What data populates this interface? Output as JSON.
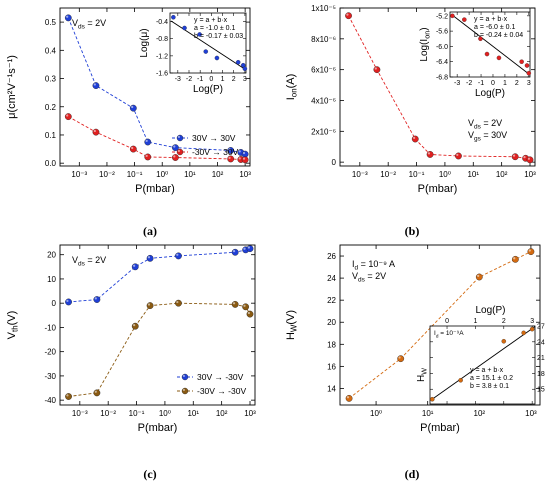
{
  "chart_data": [
    {
      "type": "scatter",
      "panel": "a",
      "caption": "(a)",
      "xlabel": "P(mbar)",
      "ylabel": "μ(cm²V⁻¹s⁻¹)",
      "xscale": "log",
      "xlim": [
        0.0002,
        1500
      ],
      "ylim": [
        -0.01,
        0.55
      ],
      "xticks": [
        0.001,
        0.01,
        0.1,
        1,
        10,
        100,
        1000
      ],
      "xticklabels": [
        "10⁻³",
        "10⁻²",
        "10⁻¹",
        "10⁰",
        "10¹",
        "10²",
        "10³"
      ],
      "yticks": [
        0.0,
        0.1,
        0.2,
        0.3,
        0.4,
        0.5
      ],
      "yticklabels": [
        "0.0",
        "0.1",
        "0.2",
        "0.3",
        "0.4",
        "0.5"
      ],
      "grid": false,
      "legend": "bottom-right",
      "annotation": "V_ds = 2V",
      "series": [
        {
          "name": "30V → 30V",
          "color": "#1f3fd6",
          "x": [
            0.0004,
            0.004,
            0.09,
            0.3,
            3,
            300,
            700,
            1000
          ],
          "y": [
            0.515,
            0.275,
            0.195,
            0.075,
            0.055,
            0.045,
            0.038,
            0.032
          ]
        },
        {
          "name": "-30V → 30V",
          "color": "#e02020",
          "x": [
            0.0004,
            0.004,
            0.09,
            0.3,
            3,
            300,
            700,
            1000
          ],
          "y": [
            0.165,
            0.11,
            0.05,
            0.022,
            0.02,
            0.015,
            0.013,
            0.012
          ]
        }
      ],
      "inset": {
        "xlabel": "Log(P)",
        "ylabel": "Log(μ)",
        "xlim": [
          -3.7,
          3.1
        ],
        "ylim": [
          -1.6,
          -0.2
        ],
        "xticks": [
          -3,
          -2,
          -1,
          0,
          1,
          2,
          3
        ],
        "xticklabels": [
          "-3",
          "-2",
          "-1",
          "0",
          "1",
          "2",
          "3"
        ],
        "yticks": [
          -1.6,
          -1.2,
          -0.8,
          -0.4
        ],
        "yticklabels": [
          "-1.6",
          "-1.2",
          "-0.8",
          "-0.4"
        ],
        "fit_text": [
          "y = a + b·x",
          "a = -1.0 ± 0.1",
          "b = -0.17 ± 0.03"
        ],
        "fit": {
          "a": -1.0,
          "b": -0.17
        },
        "points": {
          "x": [
            -3.4,
            -2.4,
            -1.05,
            -0.5,
            0.5,
            2.4,
            2.85,
            3.0
          ],
          "y": [
            -0.3,
            -0.55,
            -0.7,
            -1.1,
            -1.25,
            -1.35,
            -1.42,
            -1.5
          ]
        }
      }
    },
    {
      "type": "scatter",
      "panel": "b",
      "caption": "(b)",
      "xlabel": "P(mbar)",
      "ylabel": "I_on(A)",
      "xscale": "log",
      "xlim": [
        0.0002,
        1500
      ],
      "ylim": [
        -2.5e-07,
        1e-05
      ],
      "xticks": [
        0.001,
        0.01,
        0.1,
        1,
        10,
        100,
        1000
      ],
      "xticklabels": [
        "10⁻³",
        "10⁻²",
        "10⁻¹",
        "10⁰",
        "10¹",
        "10²",
        "10³"
      ],
      "yticks": [
        0,
        2e-06,
        4e-06,
        6e-06,
        8e-06,
        1e-05
      ],
      "yticklabels": [
        "0",
        "2x10⁻⁶",
        "4x10⁻⁶",
        "6x10⁻⁶",
        "8x10⁻⁶",
        "1x10⁻⁵"
      ],
      "grid": false,
      "annotation": [
        "V_ds = 2V",
        "V_gs = 30V"
      ],
      "series": [
        {
          "name": "",
          "color": "#e02020",
          "x": [
            0.0004,
            0.004,
            0.09,
            0.3,
            3,
            300,
            700,
            1000
          ],
          "y": [
            9.5e-06,
            6e-06,
            1.5e-06,
            5e-07,
            4e-07,
            3.5e-07,
            2.5e-07,
            1.5e-07
          ]
        }
      ],
      "inset": {
        "xlabel": "Log(P)",
        "ylabel": "Log(I_on)",
        "xlim": [
          -3.6,
          3.1
        ],
        "ylim": [
          -6.8,
          -5.1
        ],
        "xticks": [
          -3,
          -2,
          -1,
          0,
          1,
          2,
          3
        ],
        "xticklabels": [
          "-3",
          "-2",
          "-1",
          "0",
          "1",
          "2",
          "3"
        ],
        "yticks": [
          -6.8,
          -6.4,
          -6.0,
          -5.6,
          -5.2
        ],
        "yticklabels": [
          "-6.8",
          "-6.4",
          "-6.0",
          "-5.6",
          "-5.2"
        ],
        "fit_text": [
          "y = a + b·x",
          "a = -6.0 ± 0.1",
          "b = -0.24 ± 0.04"
        ],
        "fit": {
          "a": -6.0,
          "b": -0.24
        },
        "points": {
          "x": [
            -3.4,
            -2.4,
            -1.05,
            -0.5,
            0.5,
            2.4,
            2.85,
            3.0
          ],
          "y": [
            -5.2,
            -5.3,
            -5.8,
            -6.2,
            -6.3,
            -6.4,
            -6.5,
            -6.7
          ]
        }
      }
    },
    {
      "type": "scatter",
      "panel": "c",
      "caption": "(c)",
      "xlabel": "P(mbar)",
      "ylabel": "V_th(V)",
      "xscale": "log",
      "xlim": [
        0.0002,
        1500
      ],
      "ylim": [
        -42,
        24
      ],
      "xticks": [
        0.001,
        0.01,
        0.1,
        1,
        10,
        100,
        1000
      ],
      "xticklabels": [
        "10⁻³",
        "10⁻²",
        "10⁻¹",
        "10⁰",
        "10¹",
        "10²",
        "10³"
      ],
      "yticks": [
        -40,
        -30,
        -20,
        -10,
        0,
        10,
        20
      ],
      "yticklabels": [
        "-40",
        "-30",
        "-20",
        "-10",
        "0",
        "10",
        "20"
      ],
      "grid": false,
      "legend": "bottom-right",
      "annotation": "V_ds = 2V",
      "series": [
        {
          "name": "30V → -30V",
          "color": "#1f3fd6",
          "x": [
            0.0004,
            0.004,
            0.09,
            0.3,
            3,
            300,
            700,
            1000
          ],
          "y": [
            0.5,
            1.5,
            15,
            18.5,
            19.5,
            21,
            22,
            22.5
          ]
        },
        {
          "name": "-30V → -30V",
          "color": "#8a5a12",
          "x": [
            0.0004,
            0.004,
            0.09,
            0.3,
            3,
            300,
            700,
            1000
          ],
          "y": [
            -38.5,
            -37,
            -9.5,
            -1,
            0,
            -0.5,
            -1.5,
            -4.5
          ]
        }
      ]
    },
    {
      "type": "line",
      "panel": "d",
      "caption": "(d)",
      "xlabel": "P(mbar)",
      "ylabel": "H_W(V)",
      "xscale": "log",
      "xlim": [
        0.2,
        1500
      ],
      "ylim": [
        12.5,
        27
      ],
      "xticks": [
        1,
        10,
        100,
        1000
      ],
      "xticklabels": [
        "10⁰",
        "10¹",
        "10²",
        "10³"
      ],
      "yticks": [
        14,
        16,
        18,
        20,
        22,
        24,
        26
      ],
      "yticklabels": [
        "14",
        "16",
        "18",
        "20",
        "22",
        "24",
        "26"
      ],
      "grid": false,
      "annotation": [
        "I_d = 10⁻⁹ A",
        "V_ds = 2V"
      ],
      "series": [
        {
          "name": "",
          "color": "#d46a10",
          "x": [
            0.3,
            3,
            100,
            500,
            1000
          ],
          "y": [
            13.1,
            16.7,
            24.1,
            25.7,
            26.4
          ]
        }
      ],
      "inset": {
        "xlabel": "Log(P)",
        "ylabel": "H_W",
        "xlim": [
          -0.6,
          3.1
        ],
        "ylim": [
          12.2,
          27
        ],
        "xticks": [
          0,
          1,
          2,
          3
        ],
        "xticklabels": [
          "0",
          "1",
          "2",
          "3"
        ],
        "yticks": [
          15,
          18,
          21,
          24,
          27
        ],
        "yticklabels": [
          "15",
          "18",
          "21",
          "24",
          "27"
        ],
        "id_text": "I_d = 10⁻⁹A",
        "fit_text": [
          "y = a + b·x",
          "a = 15.1 ± 0.2",
          "b = 3.8 ± 0.1"
        ],
        "fit": {
          "a": 15.1,
          "b": 3.8
        },
        "points": {
          "x": [
            -0.52,
            0.48,
            2.0,
            2.7,
            3.0
          ],
          "y": [
            13.1,
            16.7,
            24.1,
            25.7,
            26.4
          ]
        }
      }
    }
  ]
}
